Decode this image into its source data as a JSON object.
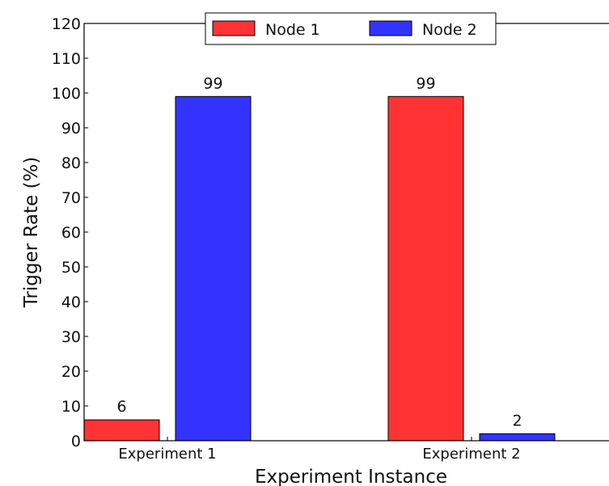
{
  "chart_data": {
    "type": "bar",
    "title": "",
    "xlabel": "Experiment Instance",
    "ylabel": "Trigger Rate (%)",
    "categories": [
      "Experiment 1",
      "Experiment 2"
    ],
    "series": [
      {
        "name": "Node 1",
        "color": "#ff3333",
        "values": [
          6,
          99
        ]
      },
      {
        "name": "Node 2",
        "color": "#3333ff",
        "values": [
          99,
          2
        ]
      }
    ],
    "ylim": [
      0,
      120
    ],
    "yticks": [
      0,
      10,
      20,
      30,
      40,
      50,
      60,
      70,
      80,
      90,
      100,
      110,
      120
    ],
    "grid": false,
    "legend": "top-center"
  }
}
